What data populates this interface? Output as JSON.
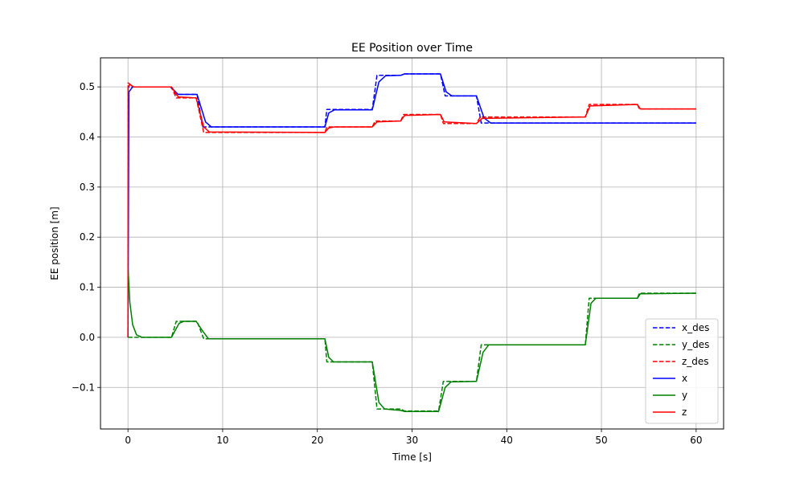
{
  "chart_data": {
    "type": "line",
    "title": "EE Position over Time",
    "xlabel": "Time [s]",
    "ylabel": "EE position [m]",
    "xlim": [
      -2.9,
      62.9
    ],
    "ylim": [
      -0.183,
      0.558
    ],
    "xticks": [
      0,
      10,
      20,
      30,
      40,
      50,
      60
    ],
    "xtick_labels": [
      "0",
      "10",
      "20",
      "30",
      "40",
      "50",
      "60"
    ],
    "yticks": [
      -0.1,
      0.0,
      0.1,
      0.2,
      0.3,
      0.4,
      0.5
    ],
    "ytick_labels": [
      "−0.1",
      "0.0",
      "0.1",
      "0.2",
      "0.3",
      "0.4",
      "0.5"
    ],
    "grid": true,
    "legend_position": "lower-right",
    "series": [
      {
        "name": "x_des",
        "color": "#0000ff",
        "dash": true,
        "points": [
          [
            0,
            0
          ],
          [
            0.01,
            0.5
          ],
          [
            4.5,
            0.5
          ],
          [
            5.1,
            0.485
          ],
          [
            7.3,
            0.485
          ],
          [
            7.9,
            0.42
          ],
          [
            20.8,
            0.42
          ],
          [
            21.0,
            0.455
          ],
          [
            25.8,
            0.455
          ],
          [
            26.3,
            0.523
          ],
          [
            28.8,
            0.523
          ],
          [
            29.2,
            0.526
          ],
          [
            33.0,
            0.526
          ],
          [
            33.5,
            0.482
          ],
          [
            36.8,
            0.482
          ],
          [
            37.3,
            0.428
          ],
          [
            60,
            0.428
          ]
        ]
      },
      {
        "name": "y_des",
        "color": "#008000",
        "dash": true,
        "points": [
          [
            0,
            0
          ],
          [
            0.01,
            0.0
          ],
          [
            4.6,
            0.0
          ],
          [
            5.1,
            0.032
          ],
          [
            7.3,
            0.032
          ],
          [
            8.0,
            -0.003
          ],
          [
            20.8,
            -0.003
          ],
          [
            21.0,
            -0.049
          ],
          [
            25.8,
            -0.049
          ],
          [
            26.3,
            -0.143
          ],
          [
            28.8,
            -0.143
          ],
          [
            29.2,
            -0.147
          ],
          [
            32.8,
            -0.147
          ],
          [
            33.3,
            -0.088
          ],
          [
            36.8,
            -0.088
          ],
          [
            37.3,
            -0.015
          ],
          [
            48.3,
            -0.015
          ],
          [
            48.7,
            0.078
          ],
          [
            53.8,
            0.078
          ],
          [
            54.0,
            0.088
          ],
          [
            60,
            0.088
          ]
        ]
      },
      {
        "name": "z_des",
        "color": "#ff0000",
        "dash": true,
        "points": [
          [
            0,
            0
          ],
          [
            0.01,
            0.508
          ],
          [
            0.6,
            0.5
          ],
          [
            4.6,
            0.5
          ],
          [
            5.1,
            0.478
          ],
          [
            7.2,
            0.478
          ],
          [
            8.0,
            0.409
          ],
          [
            20.8,
            0.409
          ],
          [
            21.0,
            0.42
          ],
          [
            25.8,
            0.42
          ],
          [
            26.1,
            0.432
          ],
          [
            28.8,
            0.432
          ],
          [
            29.1,
            0.445
          ],
          [
            33.0,
            0.445
          ],
          [
            33.3,
            0.427
          ],
          [
            36.8,
            0.427
          ],
          [
            37.2,
            0.44
          ],
          [
            48.3,
            0.44
          ],
          [
            48.7,
            0.465
          ],
          [
            53.8,
            0.465
          ],
          [
            54.0,
            0.456
          ],
          [
            60,
            0.456
          ]
        ]
      },
      {
        "name": "x",
        "color": "#0000ff",
        "dash": false,
        "points": [
          [
            0,
            0
          ],
          [
            0.1,
            0.49
          ],
          [
            0.5,
            0.5
          ],
          [
            4.5,
            0.5
          ],
          [
            5.3,
            0.485
          ],
          [
            7.3,
            0.485
          ],
          [
            8.2,
            0.43
          ],
          [
            8.8,
            0.42
          ],
          [
            20.8,
            0.42
          ],
          [
            21.2,
            0.448
          ],
          [
            21.8,
            0.454
          ],
          [
            25.8,
            0.454
          ],
          [
            26.5,
            0.51
          ],
          [
            27.2,
            0.522
          ],
          [
            28.8,
            0.523
          ],
          [
            29.2,
            0.526
          ],
          [
            33.0,
            0.526
          ],
          [
            33.6,
            0.49
          ],
          [
            34.2,
            0.482
          ],
          [
            36.8,
            0.482
          ],
          [
            37.6,
            0.438
          ],
          [
            38.3,
            0.428
          ],
          [
            60,
            0.428
          ]
        ]
      },
      {
        "name": "y",
        "color": "#008000",
        "dash": false,
        "points": [
          [
            0,
            0.14
          ],
          [
            0.2,
            0.07
          ],
          [
            0.5,
            0.025
          ],
          [
            0.9,
            0.005
          ],
          [
            1.5,
            0.0
          ],
          [
            4.6,
            0.0
          ],
          [
            5.4,
            0.028
          ],
          [
            5.9,
            0.032
          ],
          [
            7.2,
            0.032
          ],
          [
            7.8,
            0.015
          ],
          [
            8.5,
            -0.003
          ],
          [
            20.8,
            -0.003
          ],
          [
            21.2,
            -0.04
          ],
          [
            21.7,
            -0.049
          ],
          [
            25.8,
            -0.049
          ],
          [
            26.5,
            -0.13
          ],
          [
            27.1,
            -0.143
          ],
          [
            28.8,
            -0.146
          ],
          [
            29.2,
            -0.148
          ],
          [
            32.8,
            -0.148
          ],
          [
            33.5,
            -0.1
          ],
          [
            34.1,
            -0.089
          ],
          [
            36.8,
            -0.088
          ],
          [
            37.5,
            -0.03
          ],
          [
            38.1,
            -0.015
          ],
          [
            48.3,
            -0.015
          ],
          [
            48.9,
            0.068
          ],
          [
            49.4,
            0.078
          ],
          [
            53.8,
            0.078
          ],
          [
            54.1,
            0.087
          ],
          [
            60,
            0.088
          ]
        ]
      },
      {
        "name": "z",
        "color": "#ff0000",
        "dash": false,
        "points": [
          [
            0,
            0
          ],
          [
            0.02,
            0.5
          ],
          [
            0.2,
            0.505
          ],
          [
            0.6,
            0.5
          ],
          [
            4.6,
            0.5
          ],
          [
            5.3,
            0.48
          ],
          [
            7.2,
            0.478
          ],
          [
            8.0,
            0.42
          ],
          [
            8.6,
            0.41
          ],
          [
            20.8,
            0.409
          ],
          [
            21.2,
            0.418
          ],
          [
            21.8,
            0.42
          ],
          [
            25.8,
            0.42
          ],
          [
            26.3,
            0.43
          ],
          [
            28.8,
            0.432
          ],
          [
            29.2,
            0.443
          ],
          [
            33.0,
            0.445
          ],
          [
            33.4,
            0.43
          ],
          [
            36.8,
            0.427
          ],
          [
            37.4,
            0.437
          ],
          [
            48.3,
            0.44
          ],
          [
            48.8,
            0.462
          ],
          [
            53.8,
            0.465
          ],
          [
            54.1,
            0.456
          ],
          [
            60,
            0.456
          ]
        ]
      }
    ]
  }
}
